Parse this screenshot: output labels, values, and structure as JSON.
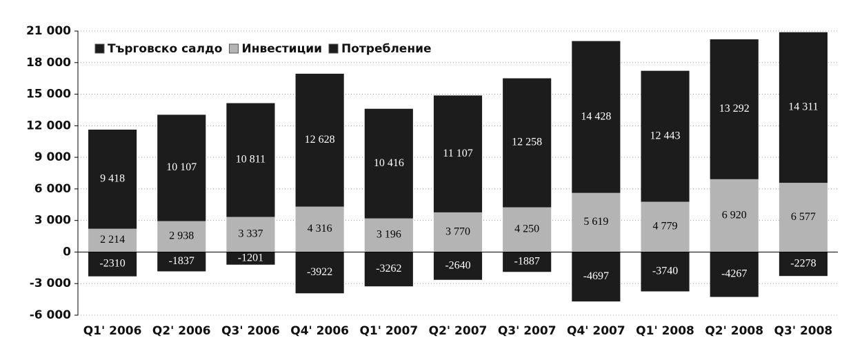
{
  "chart_data": {
    "type": "stacked_bar",
    "categories": [
      "Q1' 2006",
      "Q2' 2006",
      "Q3' 2006",
      "Q4' 2006",
      "Q1' 2007",
      "Q2' 2007",
      "Q3' 2007",
      "Q4' 2007",
      "Q1' 2008",
      "Q2' 2008",
      "Q3' 2008"
    ],
    "series": [
      {
        "name": "Търговско салдо",
        "color": "#1c1c1c",
        "label_color": "#ffffff",
        "values": [
          -2310,
          -1837,
          -1201,
          -3922,
          -3262,
          -2640,
          -1887,
          -4697,
          -3740,
          -4267,
          -2278
        ]
      },
      {
        "name": "Инвестиции",
        "color": "#b4b4b4",
        "label_color": "#000000",
        "values": [
          2214,
          2938,
          3337,
          4316,
          3196,
          3770,
          4250,
          5619,
          4779,
          6920,
          6577
        ],
        "value_labels": [
          "2 214",
          "2 938",
          "3 337",
          "4 316",
          "3 196",
          "3 770",
          "4 250",
          "5 619",
          "4 779",
          "6 920",
          "6 577"
        ]
      },
      {
        "name": "Потребление",
        "color": "#1c1c1c",
        "label_color": "#ffffff",
        "values": [
          9418,
          10107,
          10811,
          12628,
          10416,
          11107,
          12258,
          14428,
          12443,
          13292,
          14311
        ],
        "value_labels": [
          "9 418",
          "10 107",
          "10 811",
          "12 628",
          "10 416",
          "11 107",
          "12 258",
          "14 428",
          "12 443",
          "13 292",
          "14 311"
        ]
      }
    ],
    "ylim": [
      -6000,
      21000
    ],
    "yticks": [
      {
        "value": -6000,
        "label": "-6 000"
      },
      {
        "value": -3000,
        "label": "-3 000"
      },
      0,
      {
        "value": 3000,
        "label": "3 000"
      },
      {
        "value": 6000,
        "label": "6 000"
      },
      {
        "value": 9000,
        "label": "9 000"
      },
      {
        "value": 12000,
        "label": "12 000"
      },
      {
        "value": 15000,
        "label": "15 000"
      },
      {
        "value": 18000,
        "label": "18 000"
      },
      {
        "value": 21000,
        "label": "21 000"
      }
    ],
    "grid": true,
    "legend": "top-left"
  }
}
